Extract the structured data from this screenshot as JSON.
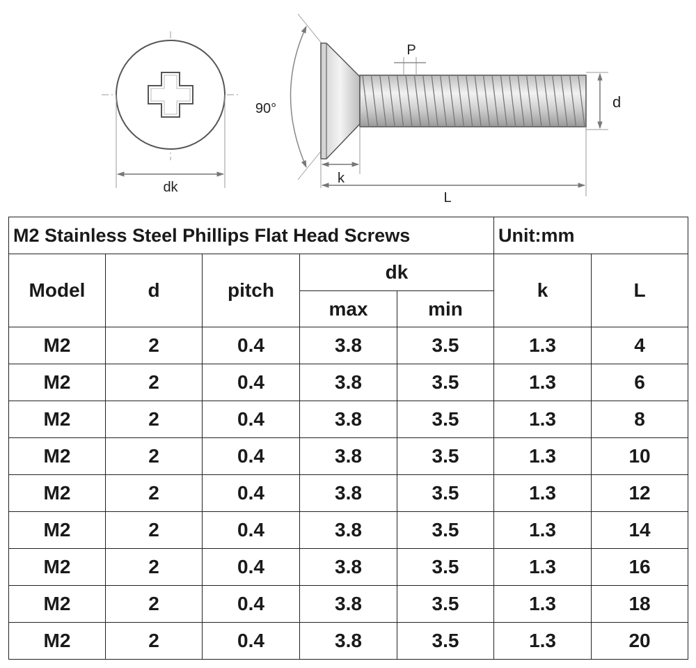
{
  "drawing": {
    "labels": {
      "dk": "dk",
      "angle": "90°",
      "pitch": "P",
      "thread_diameter": "d",
      "head_height": "k",
      "length": "L"
    }
  },
  "table": {
    "title": "M2 Stainless Steel Phillips Flat Head Screws",
    "unit": "Unit:mm",
    "headers": {
      "model": "Model",
      "d": "d",
      "pitch": "pitch",
      "dk": "dk",
      "dk_max": "max",
      "dk_min": "min",
      "k": "k",
      "L": "L"
    },
    "rows": [
      {
        "model": "M2",
        "d": "2",
        "pitch": "0.4",
        "dk_max": "3.8",
        "dk_min": "3.5",
        "k": "1.3",
        "L": "4"
      },
      {
        "model": "M2",
        "d": "2",
        "pitch": "0.4",
        "dk_max": "3.8",
        "dk_min": "3.5",
        "k": "1.3",
        "L": "6"
      },
      {
        "model": "M2",
        "d": "2",
        "pitch": "0.4",
        "dk_max": "3.8",
        "dk_min": "3.5",
        "k": "1.3",
        "L": "8"
      },
      {
        "model": "M2",
        "d": "2",
        "pitch": "0.4",
        "dk_max": "3.8",
        "dk_min": "3.5",
        "k": "1.3",
        "L": "10"
      },
      {
        "model": "M2",
        "d": "2",
        "pitch": "0.4",
        "dk_max": "3.8",
        "dk_min": "3.5",
        "k": "1.3",
        "L": "12"
      },
      {
        "model": "M2",
        "d": "2",
        "pitch": "0.4",
        "dk_max": "3.8",
        "dk_min": "3.5",
        "k": "1.3",
        "L": "14"
      },
      {
        "model": "M2",
        "d": "2",
        "pitch": "0.4",
        "dk_max": "3.8",
        "dk_min": "3.5",
        "k": "1.3",
        "L": "16"
      },
      {
        "model": "M2",
        "d": "2",
        "pitch": "0.4",
        "dk_max": "3.8",
        "dk_min": "3.5",
        "k": "1.3",
        "L": "18"
      },
      {
        "model": "M2",
        "d": "2",
        "pitch": "0.4",
        "dk_max": "3.8",
        "dk_min": "3.5",
        "k": "1.3",
        "L": "20"
      }
    ]
  }
}
